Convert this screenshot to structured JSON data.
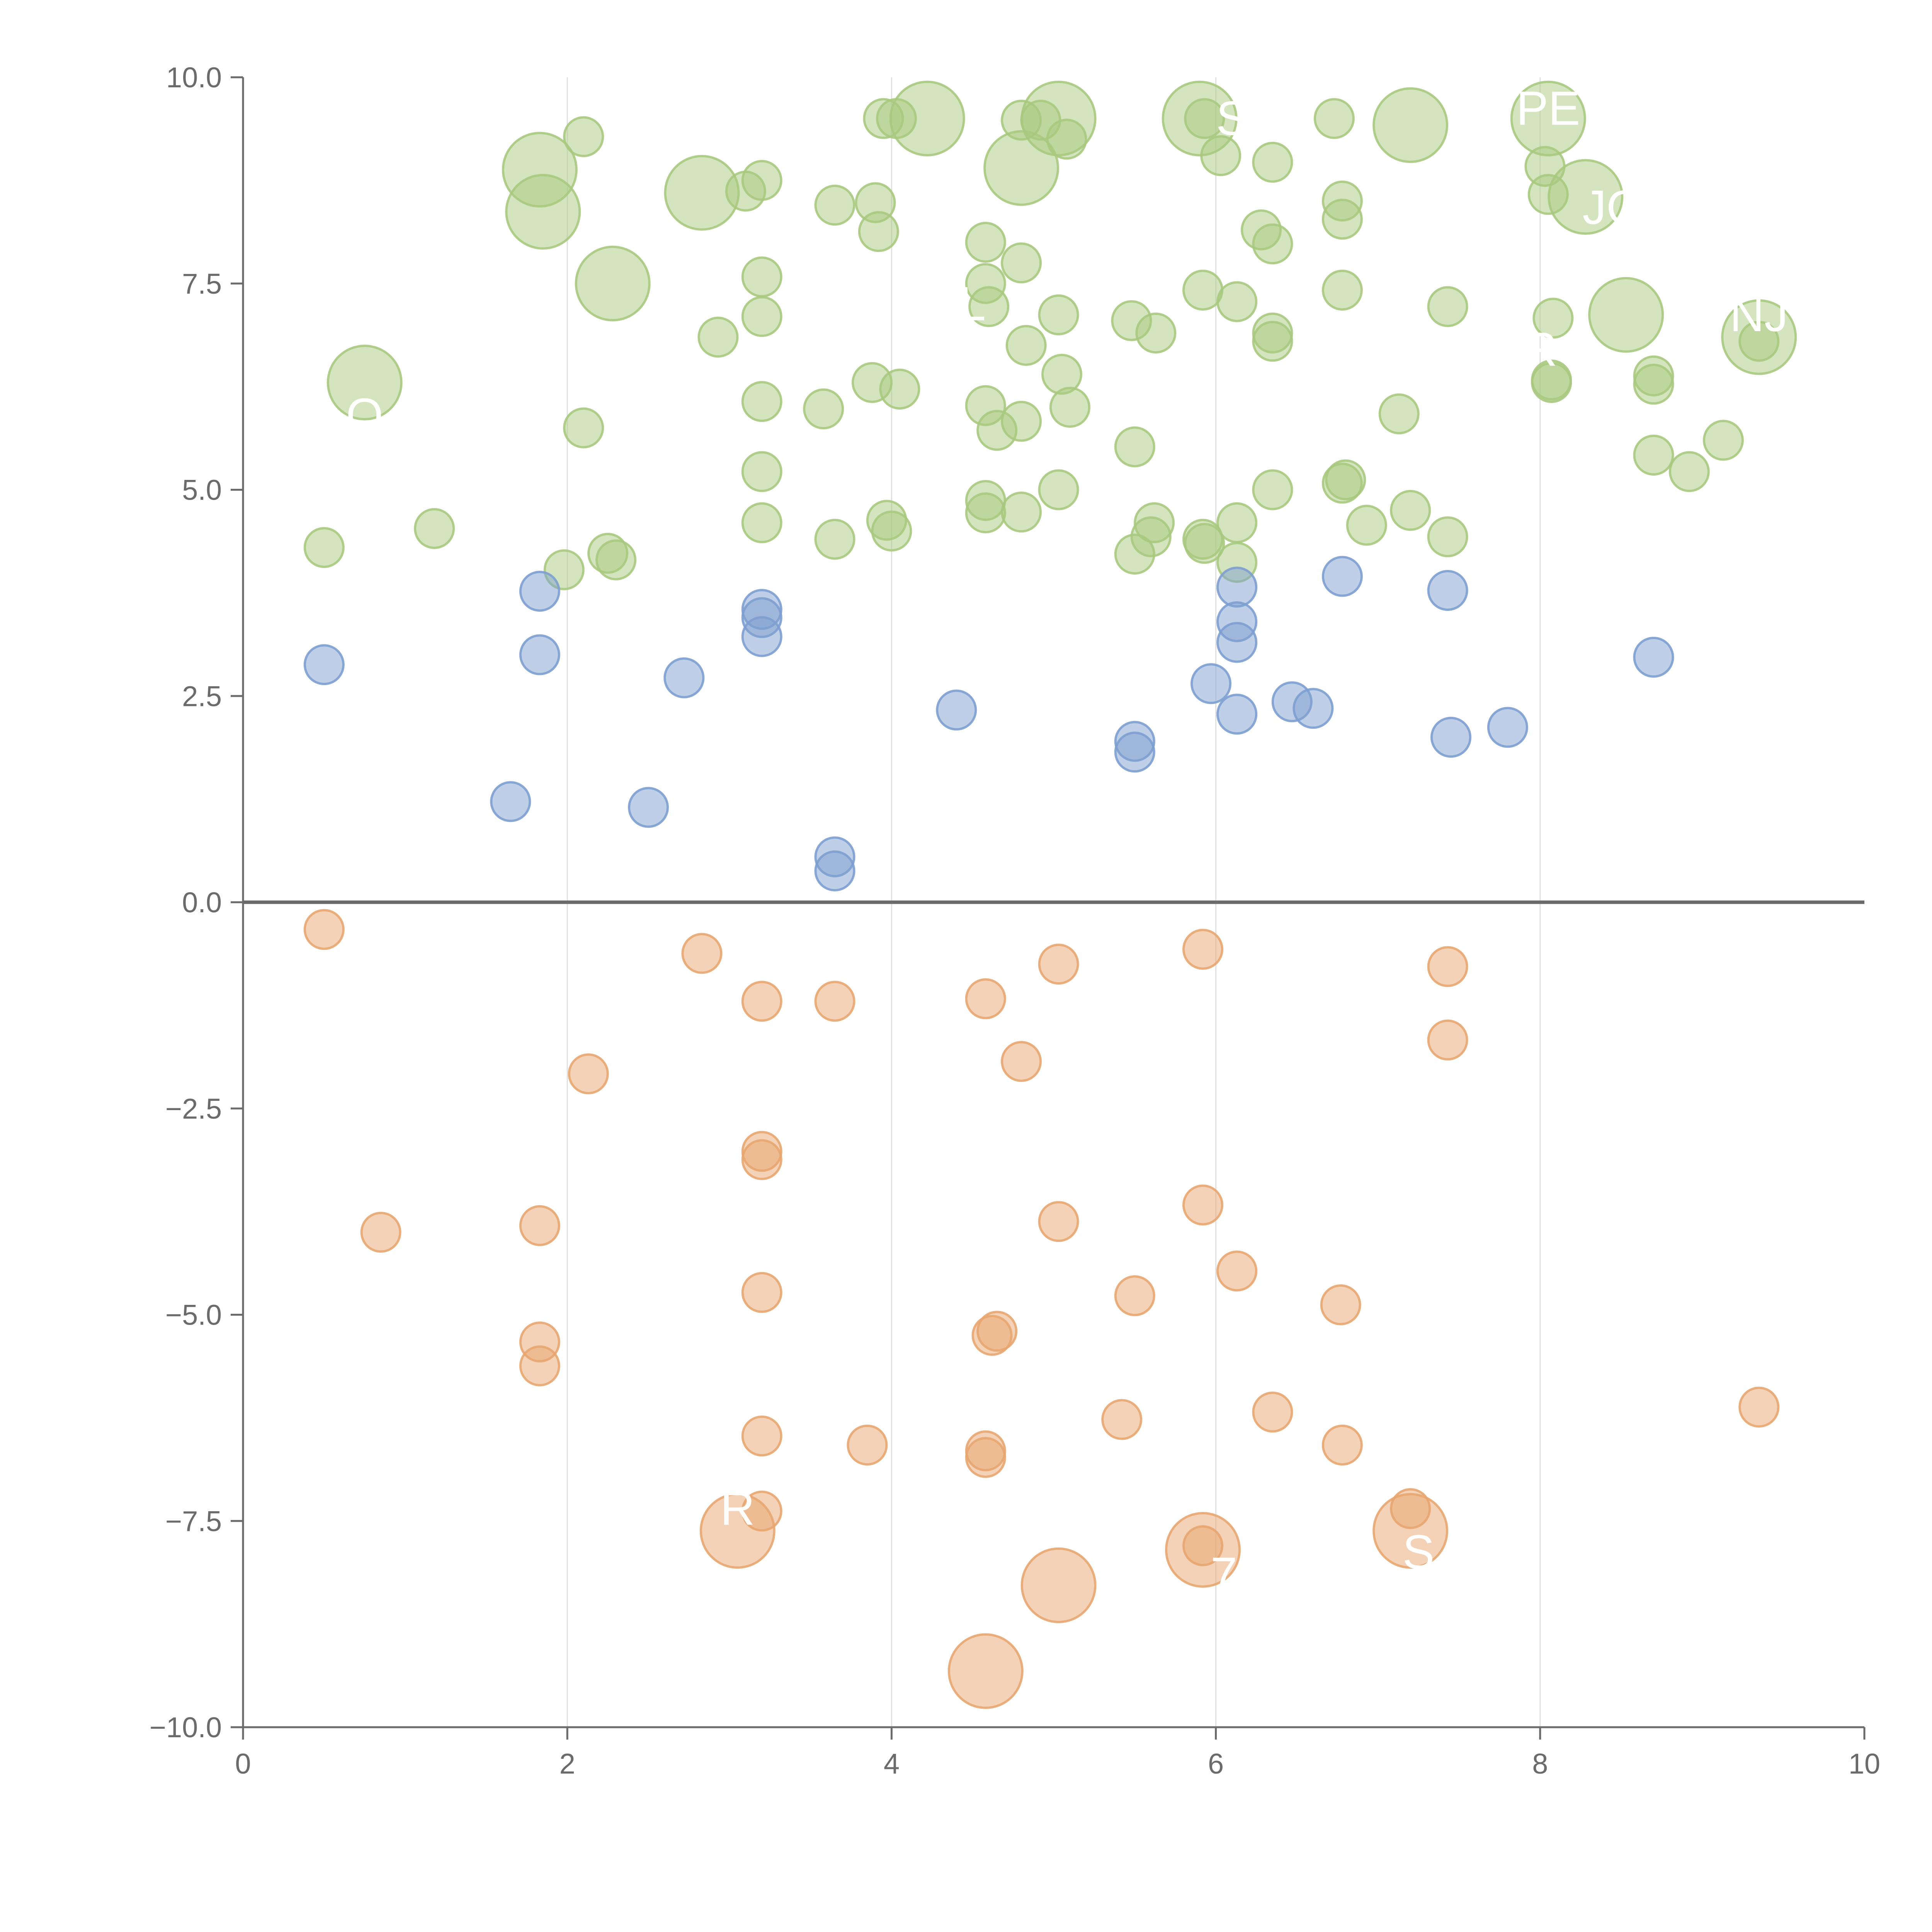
{
  "chart_data": {
    "type": "scatter",
    "title": "",
    "xlabel": "",
    "ylabel": "",
    "xlim": [
      0,
      10
    ],
    "ylim": [
      -10,
      10
    ],
    "x_ticks": [
      {
        "value": 0,
        "label": "0"
      },
      {
        "value": 2,
        "label": "2"
      },
      {
        "value": 4,
        "label": "4"
      },
      {
        "value": 6,
        "label": "6"
      },
      {
        "value": 8,
        "label": "8"
      },
      {
        "value": 10,
        "label": "10"
      }
    ],
    "y_ticks": [
      {
        "value": 10,
        "label": "10.0"
      },
      {
        "value": 7.5,
        "label": "7.5"
      },
      {
        "value": 5,
        "label": "5.0"
      },
      {
        "value": 2.5,
        "label": "2.5"
      },
      {
        "value": 0,
        "label": "0.0"
      },
      {
        "value": -2.5,
        "label": "−2.5"
      },
      {
        "value": -5,
        "label": "−5.0"
      },
      {
        "value": -7.5,
        "label": "−7.5"
      },
      {
        "value": -10,
        "label": "−10.0"
      }
    ],
    "grid": "vertical-only",
    "zero_line": true,
    "colors": {
      "green": "#a9c97f",
      "blue": "#7d9fd0",
      "orange": "#e8a670",
      "axis": "#6b6b6b",
      "grid": "#e0e0e0",
      "label": "#ffffff"
    },
    "series": [
      {
        "color": "green",
        "points": [
          [
            0.5,
            4.3,
            1
          ],
          [
            1.18,
            4.53,
            1
          ],
          [
            1.98,
            4.03,
            1
          ],
          [
            2.25,
            4.23,
            1
          ],
          [
            2.3,
            4.15,
            1
          ],
          [
            2.1,
            5.75,
            1
          ],
          [
            2.1,
            9.28,
            1
          ],
          [
            1.83,
            8.88,
            2
          ],
          [
            1.85,
            8.37,
            2
          ],
          [
            2.28,
            7.5,
            2
          ],
          [
            0.75,
            6.3,
            2
          ],
          [
            2.83,
            8.6,
            2
          ],
          [
            2.93,
            6.85,
            1
          ],
          [
            3.1,
            8.62,
            1
          ],
          [
            3.2,
            8.75,
            1
          ],
          [
            3.2,
            7.58,
            1
          ],
          [
            3.2,
            7.1,
            1
          ],
          [
            3.2,
            6.07,
            1
          ],
          [
            3.2,
            5.22,
            1
          ],
          [
            3.2,
            4.6,
            1
          ],
          [
            3.58,
            5.98,
            1
          ],
          [
            3.65,
            8.45,
            1
          ],
          [
            3.65,
            4.4,
            1
          ],
          [
            3.9,
            8.48,
            1
          ],
          [
            3.92,
            8.13,
            1
          ],
          [
            3.95,
            9.5,
            1
          ],
          [
            4.03,
            9.5,
            1
          ],
          [
            3.88,
            6.3,
            1
          ],
          [
            4.05,
            6.22,
            1
          ],
          [
            3.97,
            4.63,
            1
          ],
          [
            4.0,
            4.5,
            1
          ],
          [
            4.22,
            9.5,
            2
          ],
          [
            4.58,
            8.0,
            1
          ],
          [
            4.58,
            7.5,
            1
          ],
          [
            4.6,
            7.22,
            1
          ],
          [
            4.58,
            6.02,
            1
          ],
          [
            4.65,
            5.72,
            1
          ],
          [
            4.8,
            5.83,
            1
          ],
          [
            4.58,
            4.87,
            1
          ],
          [
            4.58,
            4.72,
            1
          ],
          [
            4.8,
            4.73,
            1
          ],
          [
            4.8,
            7.75,
            1
          ],
          [
            4.83,
            6.75,
            1
          ],
          [
            4.8,
            9.48,
            1
          ],
          [
            4.92,
            9.48,
            1
          ],
          [
            4.8,
            8.9,
            2
          ],
          [
            5.03,
            9.5,
            2
          ],
          [
            5.08,
            9.25,
            1
          ],
          [
            5.03,
            7.12,
            1
          ],
          [
            5.05,
            6.4,
            1
          ],
          [
            5.1,
            6.0,
            1
          ],
          [
            5.03,
            5.0,
            1
          ],
          [
            5.48,
            7.05,
            1
          ],
          [
            5.63,
            6.9,
            1
          ],
          [
            5.5,
            5.52,
            1
          ],
          [
            5.62,
            4.6,
            1
          ],
          [
            5.6,
            4.43,
            1
          ],
          [
            5.5,
            4.22,
            1
          ],
          [
            5.9,
            9.5,
            2
          ],
          [
            5.93,
            9.5,
            1
          ],
          [
            5.92,
            7.42,
            1
          ],
          [
            5.92,
            4.4,
            1
          ],
          [
            5.93,
            4.35,
            1
          ],
          [
            6.03,
            9.05,
            1
          ],
          [
            6.13,
            7.28,
            1
          ],
          [
            6.13,
            4.6,
            1
          ],
          [
            6.13,
            4.12,
            1
          ],
          [
            6.28,
            8.15,
            1
          ],
          [
            6.35,
            8.97,
            1
          ],
          [
            6.35,
            7.98,
            1
          ],
          [
            6.35,
            6.9,
            1
          ],
          [
            6.35,
            6.8,
            1
          ],
          [
            6.35,
            5.0,
            1
          ],
          [
            6.73,
            9.5,
            1
          ],
          [
            6.78,
            8.5,
            1
          ],
          [
            6.78,
            8.28,
            1
          ],
          [
            6.78,
            7.42,
            1
          ],
          [
            6.78,
            5.08,
            1
          ],
          [
            6.8,
            5.12,
            1
          ],
          [
            6.93,
            4.57,
            1
          ],
          [
            7.13,
            5.92,
            1
          ],
          [
            7.2,
            4.75,
            1
          ],
          [
            7.2,
            9.42,
            2
          ],
          [
            7.43,
            7.22,
            1
          ],
          [
            7.43,
            4.43,
            1
          ],
          [
            8.03,
            8.92,
            1
          ],
          [
            8.05,
            8.58,
            1
          ],
          [
            8.08,
            7.08,
            1
          ],
          [
            8.07,
            6.33,
            1
          ],
          [
            8.07,
            6.3,
            1
          ],
          [
            8.05,
            9.5,
            2
          ],
          [
            8.28,
            8.55,
            2
          ],
          [
            8.53,
            7.12,
            2
          ],
          [
            8.7,
            6.38,
            1
          ],
          [
            8.7,
            6.28,
            1
          ],
          [
            8.7,
            5.42,
            1
          ],
          [
            8.92,
            5.22,
            1
          ],
          [
            9.13,
            5.6,
            1
          ],
          [
            9.35,
            6.85,
            2
          ],
          [
            9.35,
            6.8,
            1
          ]
        ]
      },
      {
        "color": "blue",
        "points": [
          [
            0.5,
            2.88,
            1
          ],
          [
            1.65,
            1.22,
            1
          ],
          [
            1.83,
            3.77,
            1
          ],
          [
            1.83,
            3.0,
            1
          ],
          [
            2.5,
            1.15,
            1
          ],
          [
            2.72,
            2.72,
            1
          ],
          [
            3.2,
            3.55,
            1
          ],
          [
            3.2,
            3.45,
            1
          ],
          [
            3.2,
            3.22,
            1
          ],
          [
            3.65,
            0.55,
            1
          ],
          [
            3.65,
            0.38,
            1
          ],
          [
            4.4,
            2.33,
            1
          ],
          [
            5.5,
            1.95,
            1
          ],
          [
            5.5,
            1.82,
            1
          ],
          [
            5.97,
            2.65,
            1
          ],
          [
            6.13,
            3.82,
            1
          ],
          [
            6.13,
            3.4,
            1
          ],
          [
            6.13,
            3.15,
            1
          ],
          [
            6.13,
            2.28,
            1
          ],
          [
            6.47,
            2.43,
            1
          ],
          [
            6.6,
            2.35,
            1
          ],
          [
            6.78,
            3.95,
            1
          ],
          [
            7.43,
            3.78,
            1
          ],
          [
            7.45,
            2.0,
            1
          ],
          [
            7.8,
            2.12,
            1
          ],
          [
            8.7,
            2.97,
            1
          ]
        ]
      },
      {
        "color": "orange",
        "points": [
          [
            0.5,
            -0.33,
            1
          ],
          [
            0.85,
            -4.0,
            1
          ],
          [
            1.83,
            -3.92,
            1
          ],
          [
            1.83,
            -5.33,
            1
          ],
          [
            1.83,
            -5.62,
            1
          ],
          [
            2.13,
            -2.08,
            1
          ],
          [
            2.83,
            -0.62,
            1
          ],
          [
            3.2,
            -1.2,
            1
          ],
          [
            3.2,
            -3.02,
            1
          ],
          [
            3.2,
            -3.12,
            1
          ],
          [
            3.2,
            -4.73,
            1
          ],
          [
            3.2,
            -6.47,
            1
          ],
          [
            3.2,
            -7.38,
            1
          ],
          [
            3.05,
            -7.62,
            2
          ],
          [
            3.65,
            -1.2,
            1
          ],
          [
            3.85,
            -6.58,
            1
          ],
          [
            4.58,
            -1.17,
            1
          ],
          [
            4.58,
            -6.65,
            1
          ],
          [
            4.58,
            -6.73,
            1
          ],
          [
            4.58,
            -9.32,
            2
          ],
          [
            4.65,
            -5.2,
            1
          ],
          [
            4.62,
            -5.25,
            1
          ],
          [
            4.8,
            -1.93,
            1
          ],
          [
            5.03,
            -0.75,
            1
          ],
          [
            5.03,
            -3.87,
            1
          ],
          [
            5.03,
            -8.28,
            2
          ],
          [
            5.42,
            -6.27,
            1
          ],
          [
            5.5,
            -4.77,
            1
          ],
          [
            5.92,
            -0.57,
            1
          ],
          [
            5.92,
            -3.67,
            1
          ],
          [
            5.92,
            -7.8,
            1
          ],
          [
            5.92,
            -7.85,
            2
          ],
          [
            6.13,
            -4.47,
            1
          ],
          [
            6.35,
            -6.18,
            1
          ],
          [
            6.77,
            -4.88,
            1
          ],
          [
            6.78,
            -6.58,
            1
          ],
          [
            7.2,
            -7.35,
            1
          ],
          [
            7.2,
            -7.62,
            2
          ],
          [
            7.43,
            -0.78,
            1
          ],
          [
            7.43,
            -1.67,
            1
          ],
          [
            9.35,
            -6.12,
            1
          ]
        ]
      }
    ],
    "bubble_labels": [
      {
        "text": "O",
        "x": 0.75,
        "y": 5.9
      },
      {
        "text": "S",
        "x": 6.1,
        "y": 9.5
      },
      {
        "text": "PE",
        "x": 8.05,
        "y": 9.62
      },
      {
        "text": "JO",
        "x": 8.45,
        "y": 8.42
      },
      {
        "text": "EL",
        "x": 4.4,
        "y": 7.25
      },
      {
        "text": "NJ",
        "x": 9.35,
        "y": 7.12
      },
      {
        "text": "R",
        "x": 8.0,
        "y": 6.7
      },
      {
        "text": "R",
        "x": 3.05,
        "y": -7.35
      },
      {
        "text": "S",
        "x": 7.25,
        "y": -7.88
      },
      {
        "text": "7",
        "x": 6.05,
        "y": -8.15
      }
    ]
  }
}
